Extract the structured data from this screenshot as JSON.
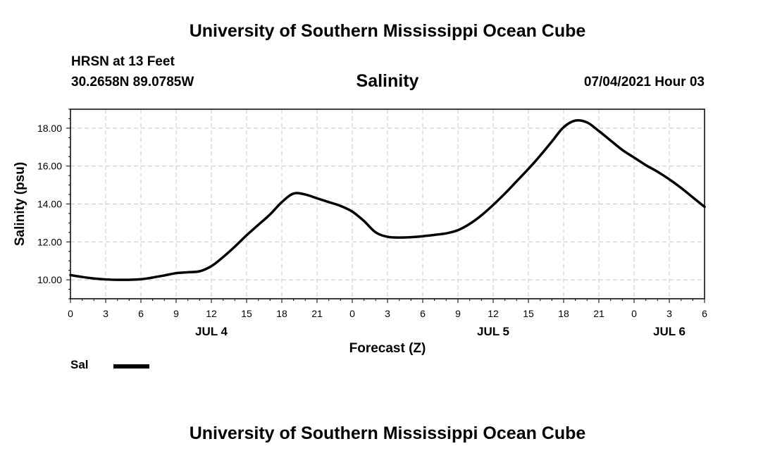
{
  "header": {
    "top_title": "University of Southern Mississippi Ocean Cube",
    "station": "HRSN at 13 Feet",
    "coords": "30.2658N  89.0785W",
    "variable": "Salinity",
    "datetime": "07/04/2021 Hour 03",
    "bottom_title": "University of Southern Mississippi Ocean Cube"
  },
  "legend": {
    "label": "Sal",
    "color": "#000000"
  },
  "chart_data": {
    "type": "line",
    "title": "Salinity",
    "xlabel": "Forecast (Z)",
    "ylabel": "Salinity (psu)",
    "xlim": [
      0,
      54
    ],
    "ylim": [
      9.0,
      19.0
    ],
    "x_ticks": [
      0,
      3,
      6,
      9,
      12,
      15,
      18,
      21,
      24,
      27,
      30,
      33,
      36,
      39,
      42,
      45,
      48,
      51,
      54
    ],
    "x_tick_labels": [
      "0",
      "3",
      "6",
      "9",
      "12",
      "15",
      "18",
      "21",
      "0",
      "3",
      "6",
      "9",
      "12",
      "15",
      "18",
      "21",
      "0",
      "3",
      "6"
    ],
    "y_ticks": [
      10,
      12,
      14,
      16,
      18
    ],
    "y_tick_labels": [
      "10.00",
      "12.00",
      "14.00",
      "16.00",
      "18.00"
    ],
    "date_labels": [
      {
        "x": 12,
        "label": "JUL 4"
      },
      {
        "x": 36,
        "label": "JUL 5"
      },
      {
        "x": 51,
        "label": "JUL 6"
      }
    ],
    "grid": true,
    "series": [
      {
        "name": "Sal",
        "color": "#000000",
        "x": [
          0,
          1,
          2,
          3,
          4,
          5,
          6,
          7,
          8,
          9,
          10,
          11,
          12,
          13,
          14,
          15,
          16,
          17,
          18,
          19,
          20,
          21,
          22,
          23,
          24,
          25,
          26,
          27,
          28,
          29,
          30,
          31,
          32,
          33,
          34,
          35,
          36,
          37,
          38,
          39,
          40,
          41,
          42,
          43,
          44,
          45,
          46,
          47,
          48,
          49,
          50,
          51,
          52,
          53,
          54
        ],
        "values": [
          10.25,
          10.15,
          10.07,
          10.02,
          10.0,
          10.0,
          10.03,
          10.12,
          10.23,
          10.35,
          10.4,
          10.45,
          10.72,
          11.2,
          11.75,
          12.35,
          12.9,
          13.45,
          14.1,
          14.55,
          14.5,
          14.3,
          14.1,
          13.9,
          13.6,
          13.1,
          12.5,
          12.27,
          12.23,
          12.25,
          12.3,
          12.37,
          12.45,
          12.62,
          12.95,
          13.4,
          13.95,
          14.55,
          15.2,
          15.85,
          16.55,
          17.3,
          18.05,
          18.4,
          18.3,
          17.85,
          17.35,
          16.85,
          16.45,
          16.05,
          15.7,
          15.3,
          14.85,
          14.35,
          13.85
        ]
      }
    ]
  }
}
